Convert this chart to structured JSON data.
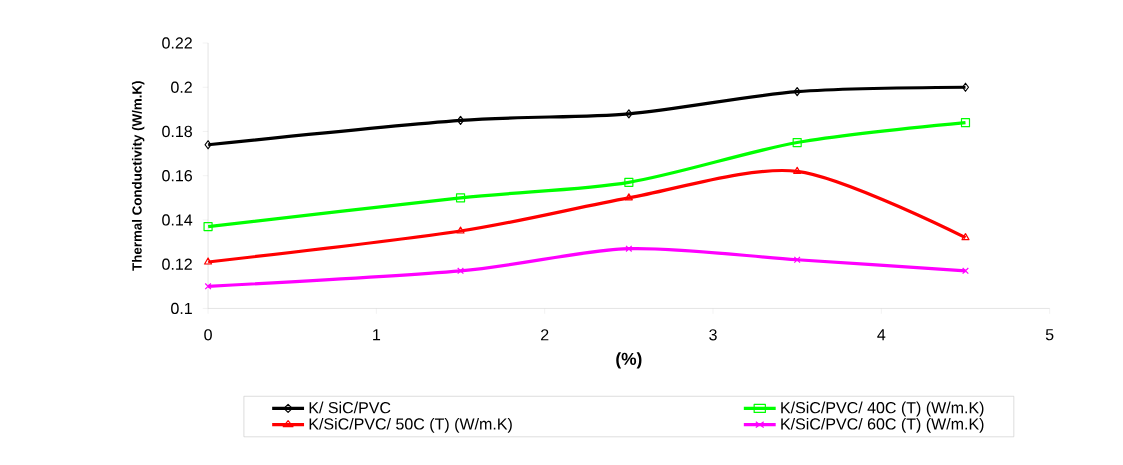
{
  "chart_data": {
    "type": "line",
    "xlabel": "(%)",
    "ylabel": "Thermal Conductivity (W/m.K)",
    "x": [
      0,
      1.5,
      2.5,
      3.5,
      4.5
    ],
    "series": [
      {
        "name": "K/ SiC/PVC",
        "color": "#000000",
        "marker": "diamond",
        "values": [
          0.174,
          0.185,
          0.188,
          0.198,
          0.2
        ]
      },
      {
        "name": "K/SiC/PVC/ 40C (T) (W/m.K)",
        "color": "#00ff00",
        "marker": "square",
        "values": [
          0.137,
          0.15,
          0.157,
          0.175,
          0.184
        ]
      },
      {
        "name": "K/SiC/PVC/ 50C (T) (W/m.K)",
        "color": "#ff0000",
        "marker": "triangle",
        "values": [
          0.121,
          0.135,
          0.15,
          0.162,
          0.132
        ]
      },
      {
        "name": "K/SiC/PVC/ 60C (T) (W/m.K)",
        "color": "#ff00ff",
        "marker": "cross",
        "values": [
          0.11,
          0.117,
          0.127,
          0.122,
          0.117
        ]
      }
    ],
    "xlim": [
      0,
      5
    ],
    "ylim": [
      0.1,
      0.22
    ],
    "xticks": [
      0,
      1,
      2,
      3,
      4,
      5
    ],
    "yticks": [
      0.1,
      0.12,
      0.14,
      0.16,
      0.18,
      0.2,
      0.22
    ],
    "legend": "bottom",
    "grid": false,
    "line_style": "solid"
  }
}
